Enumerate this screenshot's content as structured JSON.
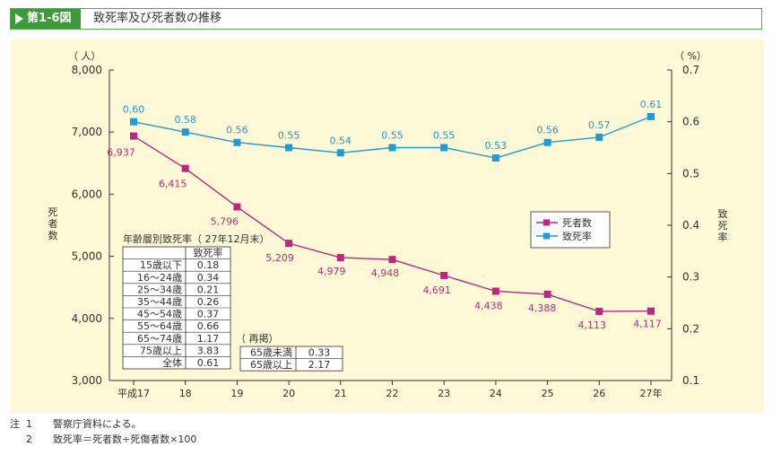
{
  "header": {
    "figure_label": "第1-6図",
    "title": "致死率及び死者数の推移"
  },
  "chart_data": {
    "type": "line",
    "categories": [
      "平成17",
      "18",
      "19",
      "20",
      "21",
      "22",
      "23",
      "24",
      "25",
      "26",
      "27年"
    ],
    "y_left": {
      "unit": "（ 人）",
      "title": "死者数",
      "ylim": [
        3000,
        8000
      ],
      "ticks": [
        "3,000",
        "4,000",
        "5,000",
        "6,000",
        "7,000",
        "8,000"
      ]
    },
    "y_right": {
      "unit": "（ %）",
      "title": "致死率",
      "ylim": [
        0.1,
        0.7
      ],
      "ticks": [
        "0.1",
        "0.2",
        "0.3",
        "0.4",
        "0.5",
        "0.6",
        "0.7"
      ]
    },
    "series": [
      {
        "name": "死者数",
        "axis": "left",
        "color": "#c0267f",
        "values": [
          6937,
          6415,
          5796,
          5209,
          4979,
          4948,
          4691,
          4438,
          4388,
          4113,
          4117
        ],
        "labels": [
          "6,937",
          "6,415",
          "5,796",
          "5,209",
          "4,979",
          "4,948",
          "4,691",
          "4,438",
          "4,388",
          "4,113",
          "4,117"
        ]
      },
      {
        "name": "致死率",
        "axis": "right",
        "color": "#1f9bd7",
        "values": [
          0.6,
          0.58,
          0.56,
          0.55,
          0.54,
          0.55,
          0.55,
          0.53,
          0.56,
          0.57,
          0.61
        ],
        "labels": [
          "0.60",
          "0.58",
          "0.56",
          "0.55",
          "0.54",
          "0.55",
          "0.55",
          "0.53",
          "0.56",
          "0.57",
          "0.61"
        ]
      }
    ],
    "legend_position": "right-middle",
    "grid": false,
    "age_table": {
      "title": "年齢層別致死率（ 27年12月末）",
      "header": "致死率",
      "rows": [
        {
          "label": "15歳以下",
          "value": "0.18"
        },
        {
          "label": "16～24歳",
          "value": "0.34"
        },
        {
          "label": "25～34歳",
          "value": "0.21"
        },
        {
          "label": "35～44歳",
          "value": "0.26"
        },
        {
          "label": "45～54歳",
          "value": "0.37"
        },
        {
          "label": "55～64歳",
          "value": "0.66"
        },
        {
          "label": "65～74歳",
          "value": "1.17"
        },
        {
          "label": "75歳以上",
          "value": "3.83"
        },
        {
          "label": "全体",
          "value": "0.61"
        }
      ]
    },
    "recap_table": {
      "title": "（ 再掲）",
      "rows": [
        {
          "label": "65歳未満",
          "value": "0.33"
        },
        {
          "label": "65歳以上",
          "value": "2.17"
        }
      ]
    }
  },
  "notes": {
    "lead": "注",
    "items": [
      {
        "num": "1",
        "text": "警察庁資料による。"
      },
      {
        "num": "2",
        "text": "致死率＝死者数÷死傷者数×100"
      }
    ]
  }
}
